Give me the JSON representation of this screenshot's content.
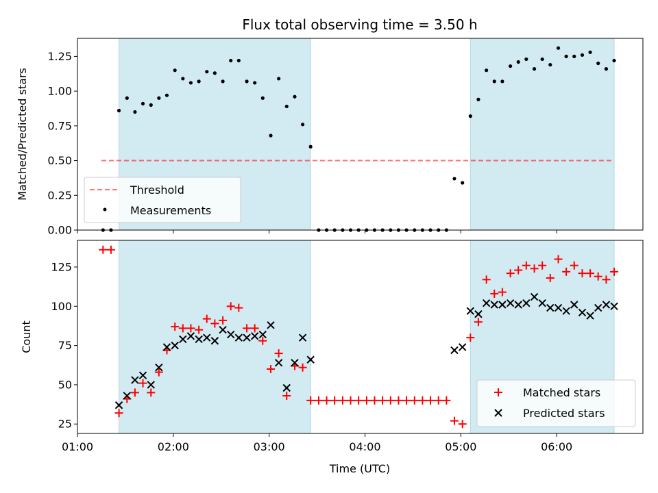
{
  "figure": {
    "title": "Flux total observing time = 3.50 h",
    "xlabel": "Time (UTC)",
    "xtick_labels": [
      "01:00",
      "02:00",
      "03:00",
      "04:00",
      "05:00",
      "06:00"
    ],
    "x_range_hours": [
      1.0,
      6.9
    ]
  },
  "chart_data": [
    {
      "type": "scatter",
      "panel": "top",
      "ylabel": "Matched/Predicted stars",
      "ylim": [
        0,
        1.38
      ],
      "yticks": [
        0.0,
        0.25,
        0.5,
        0.75,
        1.0,
        1.25
      ],
      "ytick_labels": [
        "0.00",
        "0.25",
        "0.50",
        "0.75",
        "1.00",
        "1.25"
      ],
      "shaded_intervals_hours": [
        [
          1.433,
          3.433
        ],
        [
          5.1,
          6.6
        ]
      ],
      "shade_color": "#add8e6",
      "threshold": {
        "name": "Threshold",
        "value": 0.5,
        "x_range_hours": [
          1.25,
          6.6
        ],
        "color": "#ff0000",
        "style": "dashed"
      },
      "legend": {
        "placement": "lower-left",
        "entries": [
          "Threshold",
          "Measurements"
        ]
      },
      "series": [
        {
          "name": "Measurements",
          "marker": "dot",
          "color": "#000000",
          "points": [
            [
              1.267,
              0.0
            ],
            [
              1.35,
              0.0
            ],
            [
              1.433,
              0.86
            ],
            [
              1.517,
              0.95
            ],
            [
              1.6,
              0.85
            ],
            [
              1.683,
              0.91
            ],
            [
              1.767,
              0.9
            ],
            [
              1.85,
              0.95
            ],
            [
              1.933,
              0.97
            ],
            [
              2.017,
              1.15
            ],
            [
              2.1,
              1.09
            ],
            [
              2.183,
              1.06
            ],
            [
              2.267,
              1.07
            ],
            [
              2.35,
              1.14
            ],
            [
              2.433,
              1.13
            ],
            [
              2.517,
              1.07
            ],
            [
              2.6,
              1.22
            ],
            [
              2.683,
              1.22
            ],
            [
              2.767,
              1.07
            ],
            [
              2.85,
              1.06
            ],
            [
              2.933,
              0.95
            ],
            [
              3.017,
              0.68
            ],
            [
              3.1,
              1.09
            ],
            [
              3.183,
              0.89
            ],
            [
              3.267,
              0.96
            ],
            [
              3.35,
              0.76
            ],
            [
              3.433,
              0.6
            ],
            [
              3.517,
              0.0
            ],
            [
              3.6,
              0.0
            ],
            [
              3.683,
              0.0
            ],
            [
              3.767,
              0.0
            ],
            [
              3.85,
              0.0
            ],
            [
              3.933,
              0.0
            ],
            [
              4.017,
              0.0
            ],
            [
              4.1,
              0.0
            ],
            [
              4.183,
              0.0
            ],
            [
              4.267,
              0.0
            ],
            [
              4.35,
              0.0
            ],
            [
              4.433,
              0.0
            ],
            [
              4.517,
              0.0
            ],
            [
              4.6,
              0.0
            ],
            [
              4.683,
              0.0
            ],
            [
              4.767,
              0.0
            ],
            [
              4.85,
              0.0
            ],
            [
              4.933,
              0.37
            ],
            [
              5.017,
              0.34
            ],
            [
              5.1,
              0.82
            ],
            [
              5.183,
              0.94
            ],
            [
              5.267,
              1.15
            ],
            [
              5.35,
              1.07
            ],
            [
              5.433,
              1.07
            ],
            [
              5.517,
              1.18
            ],
            [
              5.6,
              1.21
            ],
            [
              5.683,
              1.23
            ],
            [
              5.767,
              1.16
            ],
            [
              5.85,
              1.23
            ],
            [
              5.933,
              1.19
            ],
            [
              6.017,
              1.31
            ],
            [
              6.1,
              1.25
            ],
            [
              6.183,
              1.25
            ],
            [
              6.267,
              1.26
            ],
            [
              6.35,
              1.28
            ],
            [
              6.433,
              1.2
            ],
            [
              6.517,
              1.16
            ],
            [
              6.6,
              1.22
            ]
          ]
        }
      ]
    },
    {
      "type": "scatter",
      "panel": "bottom",
      "ylabel": "Count",
      "ylim": [
        19,
        142
      ],
      "yticks": [
        25,
        50,
        75,
        100,
        125
      ],
      "ytick_labels": [
        "25",
        "50",
        "75",
        "100",
        "125"
      ],
      "shaded_intervals_hours": [
        [
          1.433,
          3.433
        ],
        [
          5.1,
          6.6
        ]
      ],
      "shade_color": "#add8e6",
      "legend": {
        "placement": "lower-right",
        "entries": [
          "Matched stars",
          "Predicted stars"
        ]
      },
      "series": [
        {
          "name": "Matched stars",
          "marker": "plus",
          "color": "#ff0000",
          "points": [
            [
              1.267,
              136
            ],
            [
              1.35,
              136
            ],
            [
              1.433,
              32
            ],
            [
              1.517,
              41
            ],
            [
              1.6,
              45
            ],
            [
              1.683,
              51
            ],
            [
              1.767,
              45
            ],
            [
              1.85,
              58
            ],
            [
              1.933,
              72
            ],
            [
              2.017,
              87
            ],
            [
              2.1,
              86
            ],
            [
              2.183,
              86
            ],
            [
              2.267,
              85
            ],
            [
              2.35,
              92
            ],
            [
              2.433,
              89
            ],
            [
              2.517,
              91
            ],
            [
              2.6,
              100
            ],
            [
              2.683,
              99
            ],
            [
              2.767,
              86
            ],
            [
              2.85,
              86
            ],
            [
              2.933,
              78
            ],
            [
              3.017,
              60
            ],
            [
              3.1,
              70
            ],
            [
              3.183,
              43
            ],
            [
              3.267,
              62
            ],
            [
              3.35,
              61
            ],
            [
              3.433,
              40
            ],
            [
              3.517,
              40
            ],
            [
              3.6,
              40
            ],
            [
              3.683,
              40
            ],
            [
              3.767,
              40
            ],
            [
              3.85,
              40
            ],
            [
              3.933,
              40
            ],
            [
              4.017,
              40
            ],
            [
              4.1,
              40
            ],
            [
              4.183,
              40
            ],
            [
              4.267,
              40
            ],
            [
              4.35,
              40
            ],
            [
              4.433,
              40
            ],
            [
              4.517,
              40
            ],
            [
              4.6,
              40
            ],
            [
              4.683,
              40
            ],
            [
              4.767,
              40
            ],
            [
              4.85,
              40
            ],
            [
              4.933,
              27
            ],
            [
              5.017,
              25
            ],
            [
              5.1,
              80
            ],
            [
              5.183,
              90
            ],
            [
              5.267,
              117
            ],
            [
              5.35,
              108
            ],
            [
              5.433,
              109
            ],
            [
              5.517,
              121
            ],
            [
              5.6,
              123
            ],
            [
              5.683,
              126
            ],
            [
              5.767,
              124
            ],
            [
              5.85,
              126
            ],
            [
              5.933,
              118
            ],
            [
              6.017,
              130
            ],
            [
              6.1,
              122
            ],
            [
              6.183,
              126
            ],
            [
              6.267,
              121
            ],
            [
              6.35,
              121
            ],
            [
              6.433,
              119
            ],
            [
              6.517,
              117
            ],
            [
              6.6,
              122
            ]
          ]
        },
        {
          "name": "Predicted stars",
          "marker": "x",
          "color": "#000000",
          "points": [
            [
              1.433,
              37
            ],
            [
              1.517,
              43
            ],
            [
              1.6,
              53
            ],
            [
              1.683,
              56
            ],
            [
              1.767,
              50
            ],
            [
              1.85,
              61
            ],
            [
              1.933,
              74
            ],
            [
              2.017,
              75
            ],
            [
              2.1,
              79
            ],
            [
              2.183,
              81
            ],
            [
              2.267,
              79
            ],
            [
              2.35,
              80
            ],
            [
              2.433,
              78
            ],
            [
              2.517,
              85
            ],
            [
              2.6,
              82
            ],
            [
              2.683,
              80
            ],
            [
              2.767,
              80
            ],
            [
              2.85,
              81
            ],
            [
              2.933,
              82
            ],
            [
              3.017,
              88
            ],
            [
              3.1,
              64
            ],
            [
              3.183,
              48
            ],
            [
              3.267,
              64
            ],
            [
              3.35,
              80
            ],
            [
              3.433,
              66
            ],
            [
              4.933,
              72
            ],
            [
              5.017,
              74
            ],
            [
              5.1,
              97
            ],
            [
              5.183,
              95
            ],
            [
              5.267,
              102
            ],
            [
              5.35,
              101
            ],
            [
              5.433,
              101
            ],
            [
              5.517,
              102
            ],
            [
              5.6,
              101
            ],
            [
              5.683,
              102
            ],
            [
              5.767,
              106
            ],
            [
              5.85,
              102
            ],
            [
              5.933,
              99
            ],
            [
              6.017,
              99
            ],
            [
              6.1,
              97
            ],
            [
              6.183,
              101
            ],
            [
              6.267,
              96
            ],
            [
              6.35,
              94
            ],
            [
              6.433,
              99
            ],
            [
              6.517,
              101
            ],
            [
              6.6,
              100
            ]
          ]
        }
      ]
    }
  ]
}
